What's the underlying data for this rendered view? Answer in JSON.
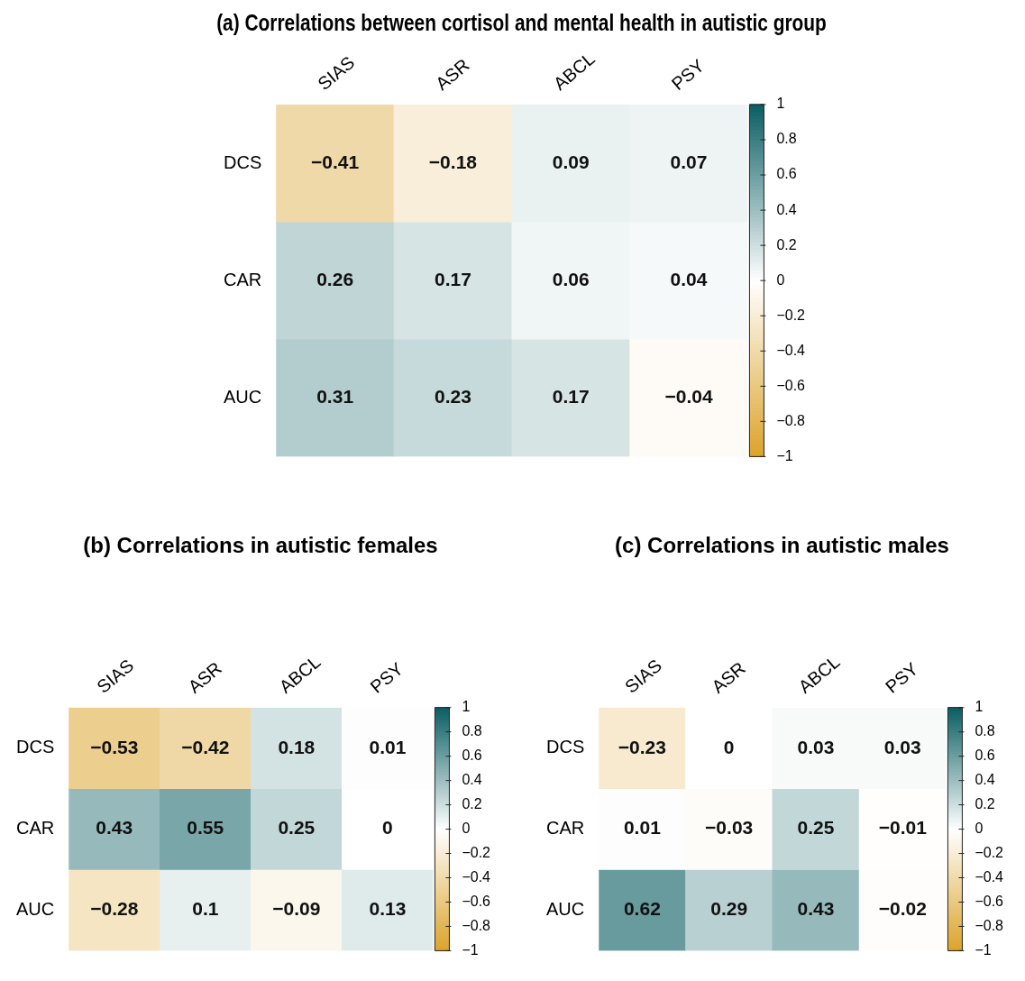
{
  "chart_data": [
    {
      "type": "heatmap",
      "title": "(a) Correlations between cortisol and mental health in autistic group",
      "categories": [
        "SIAS",
        "ASR",
        "ABCL",
        "PSY"
      ],
      "y_categories": [
        "DCS",
        "CAR",
        "AUC"
      ],
      "cells": [
        [
          -0.41,
          -0.18,
          0.09,
          0.07
        ],
        [
          0.26,
          0.17,
          0.06,
          0.04
        ],
        [
          0.31,
          0.23,
          0.17,
          -0.04
        ]
      ],
      "clim": [
        -1,
        1
      ],
      "cticks": [
        1,
        0.8,
        0.6,
        0.4,
        0.2,
        0,
        {
          "value": -0.2,
          "label": "−0.2"
        },
        {
          "value": -0.4,
          "label": "−0.4"
        },
        {
          "value": -0.6,
          "label": "−0.6"
        },
        {
          "value": -0.8,
          "label": "−0.8"
        },
        {
          "value": -1,
          "label": "−1"
        }
      ],
      "data_labels": true
    },
    {
      "type": "heatmap",
      "title": "(b) Correlations in autistic females",
      "categories": [
        "SIAS",
        "ASR",
        "ABCL",
        "PSY"
      ],
      "y_categories": [
        "DCS",
        "CAR",
        "AUC"
      ],
      "cells": [
        [
          -0.53,
          -0.42,
          0.18,
          0.01
        ],
        [
          0.43,
          0.55,
          0.25,
          0
        ],
        [
          -0.28,
          0.1,
          -0.09,
          0.13
        ]
      ],
      "clim": [
        -1,
        1
      ],
      "cticks": [
        1,
        0.8,
        0.6,
        0.4,
        0.2,
        0,
        {
          "value": -0.2,
          "label": "−0.2"
        },
        {
          "value": -0.4,
          "label": "−0.4"
        },
        {
          "value": -0.6,
          "label": "−0.6"
        },
        {
          "value": -0.8,
          "label": "−0.8"
        },
        {
          "value": -1,
          "label": "−1"
        }
      ],
      "data_labels": true
    },
    {
      "type": "heatmap",
      "title": "(c) Correlations in autistic males",
      "categories": [
        "SIAS",
        "ASR",
        "ABCL",
        "PSY"
      ],
      "y_categories": [
        "DCS",
        "CAR",
        "AUC"
      ],
      "cells": [
        [
          -0.23,
          0,
          0.03,
          0.03
        ],
        [
          0.01,
          -0.03,
          0.25,
          -0.01
        ],
        [
          0.62,
          0.29,
          0.43,
          -0.02
        ]
      ],
      "clim": [
        -1,
        1
      ],
      "cticks": [
        1,
        0.8,
        0.6,
        0.4,
        0.2,
        0,
        {
          "value": -0.2,
          "label": "−0.2"
        },
        {
          "value": -0.4,
          "label": "−0.4"
        },
        {
          "value": -0.6,
          "label": "−0.6"
        },
        {
          "value": -0.8,
          "label": "−0.8"
        },
        {
          "value": -1,
          "label": "−1"
        }
      ],
      "data_labels": true
    }
  ]
}
